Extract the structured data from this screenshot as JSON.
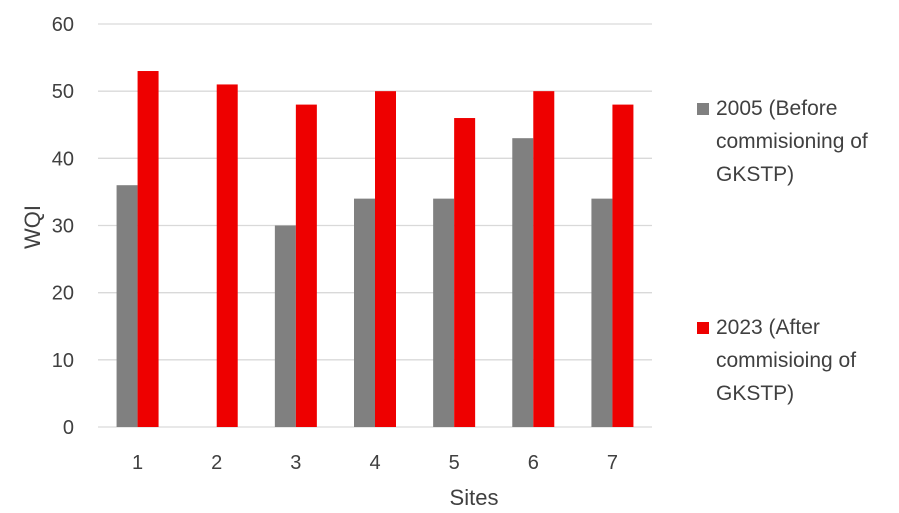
{
  "chart_data": {
    "type": "bar",
    "categories": [
      "1",
      "2",
      "3",
      "4",
      "5",
      "6",
      "7"
    ],
    "series": [
      {
        "name": "2005 (Before commisioning of GKSTP)",
        "color": "#808080",
        "values": [
          36,
          0,
          30,
          34,
          34,
          43,
          34
        ]
      },
      {
        "name": "2023 (After commisioing of GKSTP)",
        "color": "#ee0000",
        "values": [
          53,
          51,
          48,
          50,
          46,
          50,
          48
        ]
      }
    ],
    "yticks": [
      "0",
      "10",
      "20",
      "30",
      "40",
      "50",
      "60"
    ],
    "xlabel": "Sites",
    "ylabel": "WQI",
    "ylim": [
      0,
      60
    ],
    "grid": true,
    "legend_position": "right"
  }
}
